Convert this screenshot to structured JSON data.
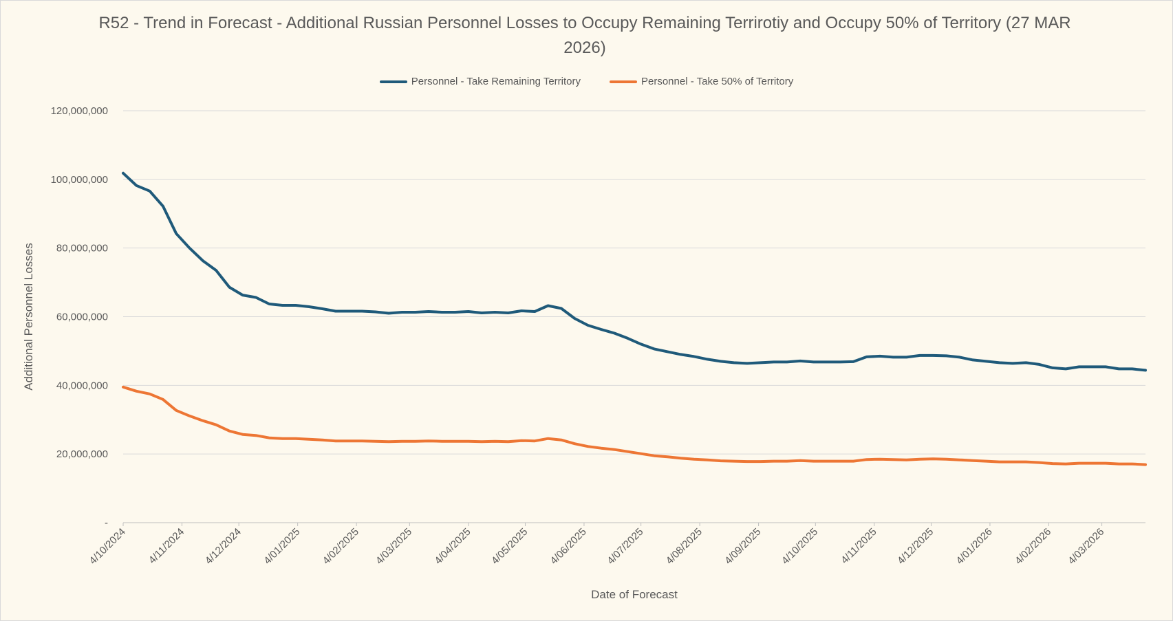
{
  "chart_data": {
    "type": "line",
    "title": "R52 - Trend in Forecast - Additional Russian Personnel Losses to Occupy Remaining Terrirotiy and Occupy 50% of Territory  (27 MAR 2026)",
    "xlabel": "Date of Forecast",
    "ylabel": "Additional Personnel Losses",
    "ylim": [
      0,
      120000000
    ],
    "y_ticks": [
      "-",
      "20,000,000",
      "40,000,000",
      "60,000,000",
      "80,000,000",
      "100,000,000",
      "120,000,000"
    ],
    "x_ticks": [
      "4/10/2024",
      "4/11/2024",
      "4/12/2024",
      "4/01/2025",
      "4/02/2025",
      "4/03/2025",
      "4/04/2025",
      "4/05/2025",
      "4/06/2025",
      "4/07/2025",
      "4/08/2025",
      "4/09/2025",
      "4/10/2025",
      "4/11/2025",
      "4/12/2025",
      "4/01/2026",
      "4/02/2026",
      "4/03/2026"
    ],
    "x_start": "2024-10-04",
    "x_end": "2026-03-27",
    "grid": true,
    "legend_position": "top",
    "x": [
      "2024-10-04",
      "2024-10-11",
      "2024-10-18",
      "2024-10-25",
      "2024-11-01",
      "2024-11-08",
      "2024-11-15",
      "2024-11-22",
      "2024-11-29",
      "2024-12-06",
      "2024-12-13",
      "2024-12-20",
      "2024-12-27",
      "2025-01-03",
      "2025-01-10",
      "2025-01-17",
      "2025-01-24",
      "2025-01-31",
      "2025-02-07",
      "2025-02-14",
      "2025-02-21",
      "2025-02-28",
      "2025-03-07",
      "2025-03-14",
      "2025-03-21",
      "2025-03-28",
      "2025-04-04",
      "2025-04-11",
      "2025-04-18",
      "2025-04-25",
      "2025-05-02",
      "2025-05-09",
      "2025-05-16",
      "2025-05-23",
      "2025-05-30",
      "2025-06-06",
      "2025-06-13",
      "2025-06-20",
      "2025-06-27",
      "2025-07-04",
      "2025-07-11",
      "2025-07-18",
      "2025-07-25",
      "2025-08-01",
      "2025-08-08",
      "2025-08-15",
      "2025-08-22",
      "2025-08-29",
      "2025-09-05",
      "2025-09-12",
      "2025-09-19",
      "2025-09-26",
      "2025-10-03",
      "2025-10-10",
      "2025-10-17",
      "2025-10-24",
      "2025-10-31",
      "2025-11-07",
      "2025-11-14",
      "2025-11-21",
      "2025-11-28",
      "2025-12-05",
      "2025-12-12",
      "2025-12-19",
      "2025-12-26",
      "2026-01-02",
      "2026-01-09",
      "2026-01-16",
      "2026-01-23",
      "2026-01-30",
      "2026-02-06",
      "2026-02-13",
      "2026-02-20",
      "2026-02-27",
      "2026-03-06",
      "2026-03-13",
      "2026-03-20",
      "2026-03-27"
    ],
    "series": [
      {
        "name": "Personnel - Take Remaining Territory",
        "color": "#1f5a7a",
        "values": [
          101800000,
          98200000,
          96600000,
          92200000,
          84200000,
          80000000,
          76300000,
          73500000,
          68600000,
          66300000,
          65600000,
          63700000,
          63300000,
          63300000,
          62900000,
          62300000,
          61600000,
          61600000,
          61600000,
          61400000,
          61000000,
          61300000,
          61300000,
          61500000,
          61300000,
          61300000,
          61500000,
          61100000,
          61300000,
          61100000,
          61700000,
          61500000,
          63200000,
          62400000,
          59500000,
          57500000,
          56300000,
          55200000,
          53700000,
          52000000,
          50600000,
          49800000,
          49000000,
          48400000,
          47600000,
          47000000,
          46600000,
          46400000,
          46600000,
          46800000,
          46800000,
          47100000,
          46800000,
          46800000,
          46800000,
          46900000,
          48300000,
          48500000,
          48200000,
          48200000,
          48700000,
          48700000,
          48600000,
          48200000,
          47400000,
          47000000,
          46600000,
          46400000,
          46600000,
          46100000,
          45100000,
          44800000,
          45400000,
          45400000,
          45400000,
          44800000,
          44800000,
          44400000
        ]
      },
      {
        "name": "Personnel - Take 50% of Territory",
        "color": "#ed7634",
        "values": [
          39500000,
          38300000,
          37500000,
          35900000,
          32700000,
          31100000,
          29700000,
          28500000,
          26700000,
          25700000,
          25400000,
          24700000,
          24500000,
          24500000,
          24300000,
          24100000,
          23800000,
          23800000,
          23800000,
          23700000,
          23600000,
          23700000,
          23700000,
          23800000,
          23700000,
          23700000,
          23700000,
          23600000,
          23700000,
          23600000,
          23900000,
          23800000,
          24500000,
          24100000,
          23000000,
          22200000,
          21700000,
          21300000,
          20700000,
          20100000,
          19500000,
          19200000,
          18800000,
          18500000,
          18300000,
          18000000,
          17900000,
          17800000,
          17800000,
          17900000,
          17900000,
          18100000,
          17900000,
          17900000,
          17900000,
          17900000,
          18400000,
          18500000,
          18400000,
          18300000,
          18500000,
          18600000,
          18500000,
          18300000,
          18100000,
          17900000,
          17700000,
          17700000,
          17700000,
          17500000,
          17200000,
          17100000,
          17300000,
          17300000,
          17300000,
          17100000,
          17100000,
          16900000
        ]
      }
    ]
  }
}
